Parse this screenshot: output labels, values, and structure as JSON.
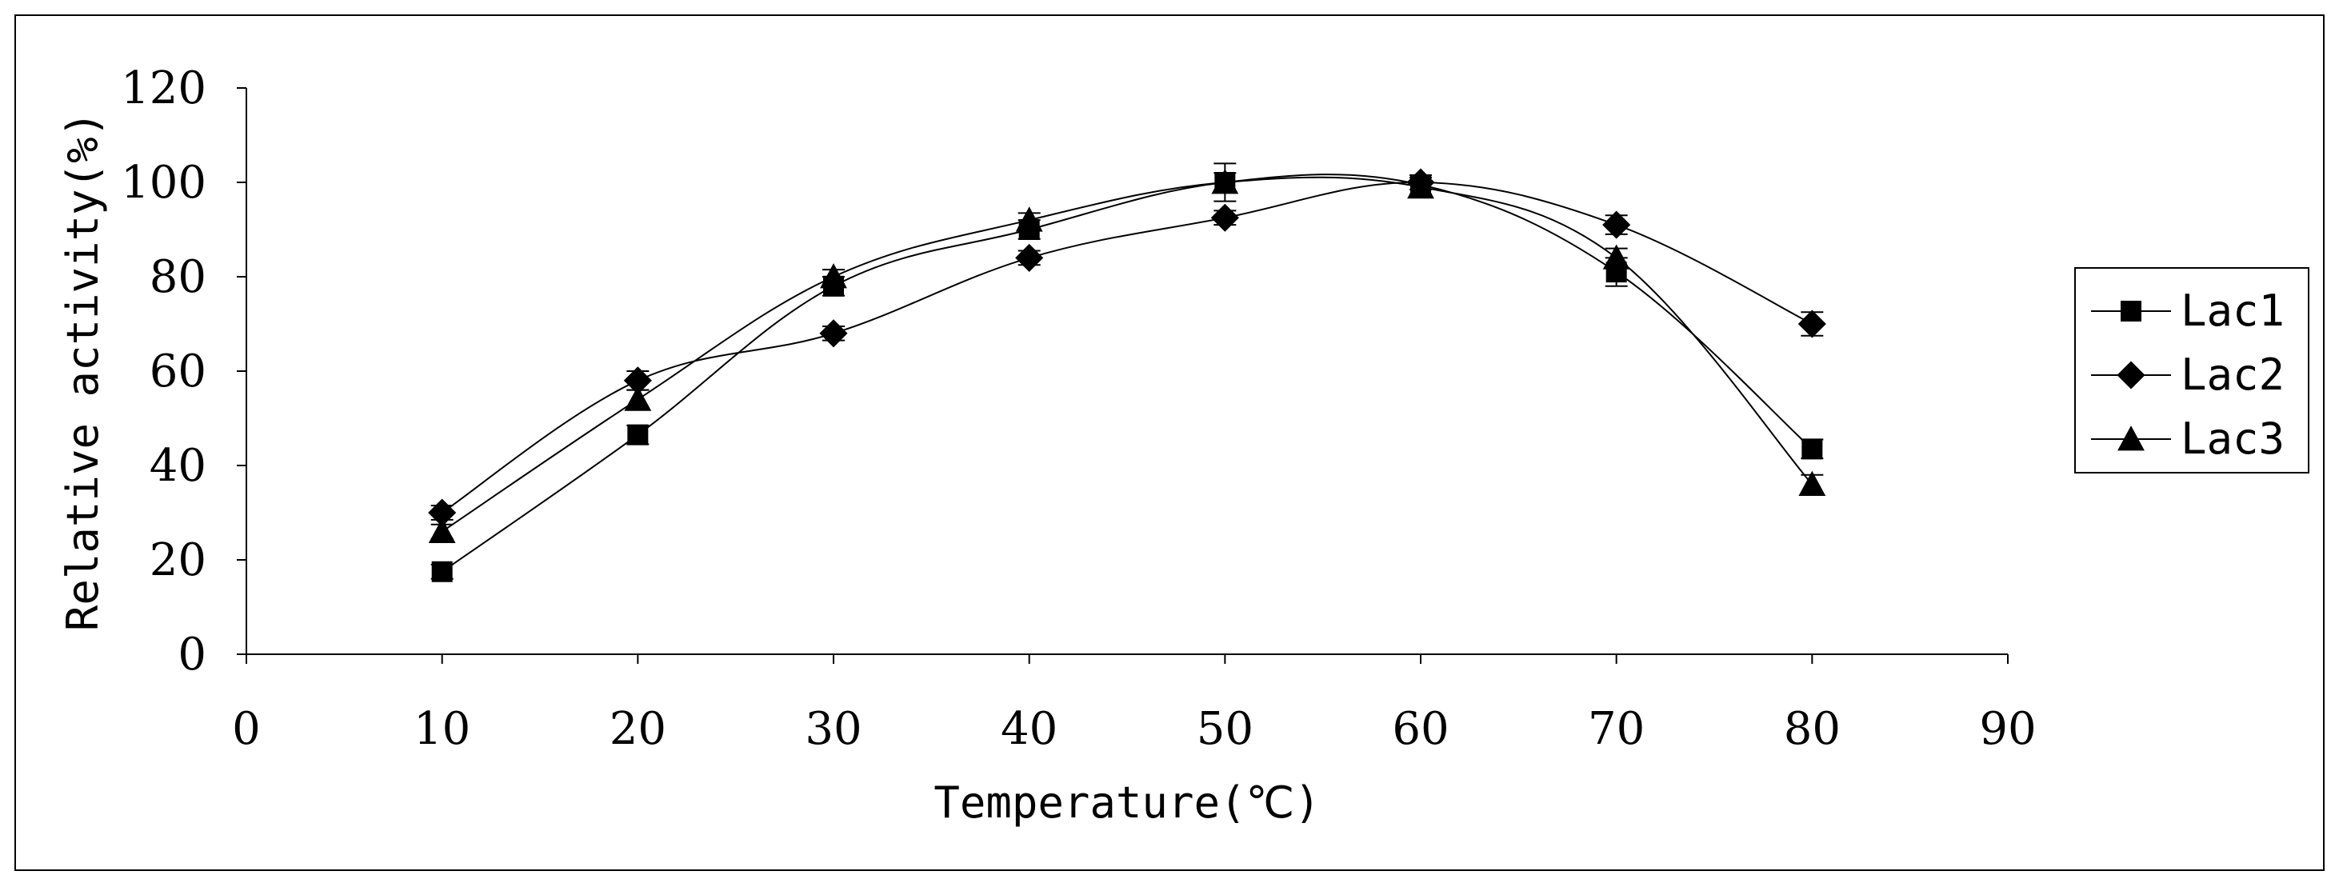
{
  "chart_data": {
    "type": "line",
    "title": "",
    "xlabel": "Temperature(℃)",
    "ylabel": "Relative activity(%)",
    "xlim": [
      0,
      90
    ],
    "ylim": [
      0,
      120
    ],
    "xticks": [
      0,
      10,
      20,
      30,
      40,
      50,
      60,
      70,
      80,
      90
    ],
    "yticks": [
      0,
      20,
      40,
      60,
      80,
      100,
      120
    ],
    "grid": false,
    "legend_position": "right",
    "series": [
      {
        "name": "Lac1",
        "marker": "square",
        "x": [
          10,
          20,
          30,
          40,
          50,
          60,
          70,
          80
        ],
        "y": [
          17.5,
          46.5,
          78,
          90,
          100,
          99.5,
          81,
          43.5
        ],
        "error": [
          1.5,
          2,
          2,
          2,
          4,
          2,
          3,
          2
        ]
      },
      {
        "name": "Lac2",
        "marker": "diamond",
        "x": [
          10,
          20,
          30,
          40,
          50,
          60,
          70,
          80
        ],
        "y": [
          30,
          58,
          68,
          84,
          92.5,
          100,
          91,
          70
        ],
        "error": [
          1.5,
          2,
          1.5,
          1.5,
          1.5,
          1.5,
          2,
          2.5
        ]
      },
      {
        "name": "Lac3",
        "marker": "triangle",
        "x": [
          10,
          20,
          30,
          40,
          50,
          60,
          70,
          80
        ],
        "y": [
          26,
          54,
          80,
          92,
          100,
          99,
          84,
          36
        ],
        "error": [
          1.5,
          2,
          1.5,
          1.5,
          2,
          2,
          2,
          2
        ]
      }
    ]
  }
}
